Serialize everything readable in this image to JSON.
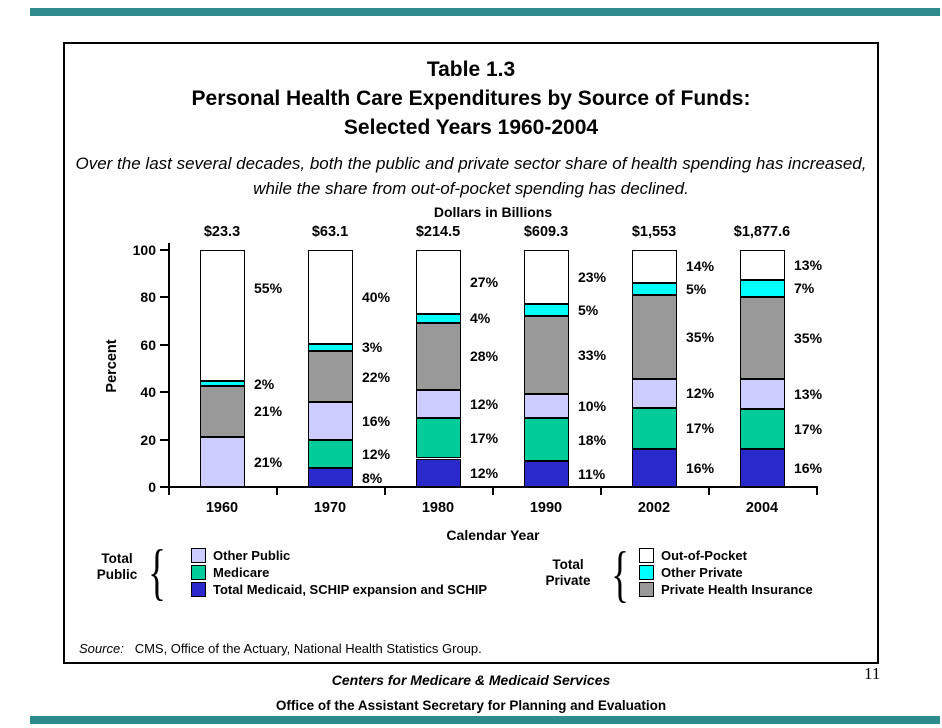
{
  "header": {
    "title_line1": "Table 1.3",
    "title_line2": "Personal Health Care Expenditures by Source of Funds:",
    "title_line3": "Selected Years 1960-2004",
    "subtitle": "Over the last several decades, both the public and private sector share of health spending has increased, while the share from out-of-pocket spending has declined."
  },
  "chart_data": {
    "type": "bar",
    "stacked": true,
    "title": "Dollars in Billions",
    "xlabel": "Calendar Year",
    "ylabel": "Percent",
    "ylim": [
      0,
      100
    ],
    "yticks": [
      0,
      20,
      40,
      60,
      80,
      100
    ],
    "grid": "off",
    "categories": [
      "1960",
      "1970",
      "1980",
      "1990",
      "2002",
      "2004"
    ],
    "bar_totals_dollars": [
      "$23.3",
      "$63.1",
      "$214.5",
      "$609.3",
      "$1,553",
      "$1,877.6"
    ],
    "series": [
      {
        "name": "Total Medicaid, SCHIP expansion and SCHIP",
        "color": "#2929CC",
        "values": [
          0,
          8,
          12,
          11,
          16,
          16
        ]
      },
      {
        "name": "Medicare",
        "color": "#00CC99",
        "values": [
          0,
          12,
          17,
          18,
          17,
          17
        ]
      },
      {
        "name": "Other Public",
        "color": "#CCCCFF",
        "values": [
          21,
          16,
          12,
          10,
          12,
          13
        ]
      },
      {
        "name": "Private Health Insurance",
        "color": "#999999",
        "values": [
          21,
          22,
          28,
          33,
          35,
          35
        ]
      },
      {
        "name": "Other Private",
        "color": "#00FFFF",
        "values": [
          2,
          3,
          4,
          5,
          5,
          7
        ]
      },
      {
        "name": "Out-of-Pocket",
        "color": "#FFFFFF",
        "values": [
          55,
          40,
          27,
          23,
          14,
          13
        ]
      }
    ]
  },
  "legend": {
    "brace_glyph": "{",
    "public_group": {
      "title_line1": "Total",
      "title_line2": "Public",
      "items": [
        {
          "label": "Other Public",
          "color": "#CCCCFF"
        },
        {
          "label": "Medicare",
          "color": "#00CC99"
        },
        {
          "label": "Total Medicaid, SCHIP expansion and SCHIP",
          "color": "#2929CC"
        }
      ]
    },
    "private_group": {
      "title_line1": "Total",
      "title_line2": "Private",
      "items": [
        {
          "label": "Out-of-Pocket",
          "color": "#FFFFFF"
        },
        {
          "label": "Other Private",
          "color": "#00FFFF"
        },
        {
          "label": "Private Health Insurance",
          "color": "#999999"
        }
      ]
    }
  },
  "source": {
    "prefix": "Source:",
    "text": "CMS, Office of the Actuary, National Health Statistics Group."
  },
  "footer": {
    "line1": "Centers for Medicare & Medicaid Services",
    "line2": "Office of the Assistant Secretary for Planning and Evaluation",
    "page_number": "11"
  },
  "accent": {
    "teal_bar_color": "#2E8B8B"
  }
}
